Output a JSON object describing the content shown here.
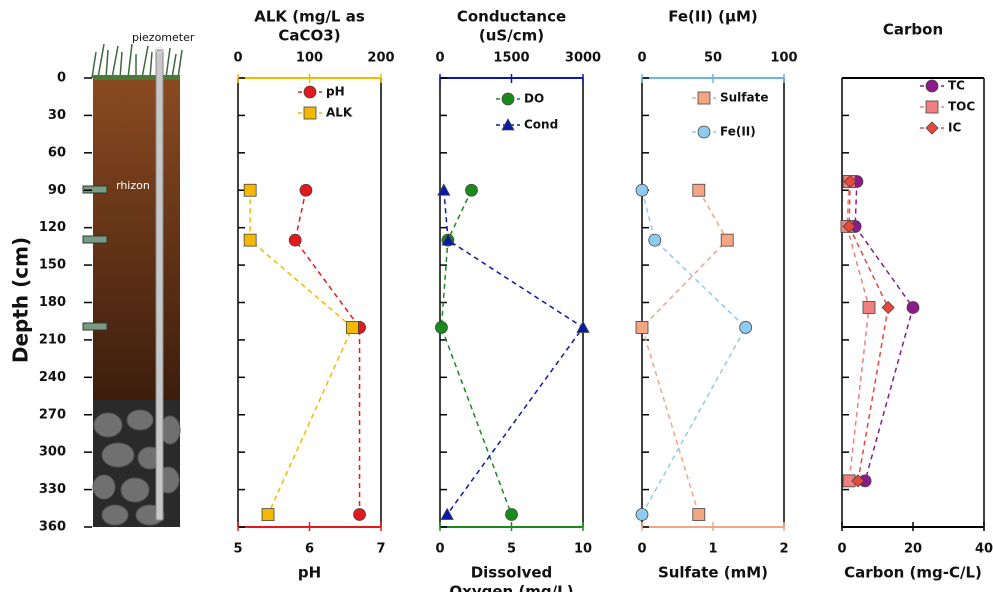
{
  "illustration": {
    "labels": [
      "piezometer",
      "rhizon"
    ]
  },
  "chart_data": [
    {
      "type": "line",
      "x2label": [
        "ALK (mg/L as",
        "CaCO3)"
      ],
      "xlabel": "pH",
      "y": [
        90,
        130,
        200,
        350
      ],
      "ylabel": "Depth (cm)",
      "ylim": [
        360,
        0
      ],
      "yticks": [
        0,
        30,
        60,
        90,
        120,
        150,
        180,
        210,
        240,
        270,
        300,
        330,
        360
      ],
      "xlim": [
        5,
        7
      ],
      "xticks": [
        5,
        6,
        7
      ],
      "x2lim": [
        0,
        200
      ],
      "x2ticks": [
        0,
        100,
        200
      ],
      "xaxis_color": "#e31a1c",
      "x2axis_color": "#f5b800",
      "series": [
        {
          "name": "pH",
          "color": "#e31a1c",
          "marker": "circle",
          "values": [
            5.95,
            5.8,
            6.7,
            6.7
          ]
        },
        {
          "name": "ALK",
          "color": "#f5b800",
          "marker": "square",
          "axis": "x2",
          "values": [
            17,
            17,
            160,
            42
          ]
        }
      ]
    },
    {
      "type": "line",
      "x2label": [
        "Conductance",
        "(uS/cm)"
      ],
      "xlabel": [
        "Dissolved",
        "Oxygen (mg/L)"
      ],
      "y": [
        90,
        130,
        200,
        350
      ],
      "ylim": [
        360,
        0
      ],
      "yticks": [
        0,
        30,
        60,
        90,
        120,
        150,
        180,
        210,
        240,
        270,
        300,
        330,
        360
      ],
      "xlim": [
        0,
        10
      ],
      "xticks": [
        0,
        5,
        10
      ],
      "x2lim": [
        0,
        3000
      ],
      "x2ticks": [
        0,
        1500,
        3000
      ],
      "xaxis_color": "#1a8a1a",
      "x2axis_color": "#0a1aa8",
      "series": [
        {
          "name": "DO",
          "color": "#1a8a1a",
          "marker": "circle",
          "values": [
            2.2,
            0.55,
            0.1,
            5.0
          ]
        },
        {
          "name": "Cond",
          "color": "#0a1aa8",
          "marker": "triangle",
          "axis": "x2",
          "values": [
            80,
            170,
            3000,
            150
          ]
        }
      ]
    },
    {
      "type": "line",
      "x2label": [
        "Fe(II) (μM)"
      ],
      "xlabel": "Sulfate (mM)",
      "y": [
        90,
        130,
        200,
        350
      ],
      "ylim": [
        360,
        0
      ],
      "yticks": [
        0,
        30,
        60,
        90,
        120,
        150,
        180,
        210,
        240,
        270,
        300,
        330,
        360
      ],
      "xlim": [
        0,
        2
      ],
      "xticks": [
        0,
        1,
        2
      ],
      "x2lim": [
        0,
        100
      ],
      "x2ticks": [
        0,
        50,
        100
      ],
      "xaxis_color": "#f4a582",
      "x2axis_color": "#6cb4e4",
      "series": [
        {
          "name": "Sulfate",
          "color": "#f4a582",
          "marker": "square",
          "values": [
            0.8,
            1.2,
            0,
            0.8
          ]
        },
        {
          "name": "Fe(II)",
          "color": "#8ecbf0",
          "marker": "circle",
          "axis": "x2",
          "values": [
            0,
            9,
            73,
            0
          ]
        }
      ]
    },
    {
      "type": "line",
      "title": "Carbon",
      "xlabel": "Carbon (mg-C/L)",
      "y": [
        83,
        119,
        184,
        323
      ],
      "ylim": [
        360,
        0
      ],
      "yticks": [
        0,
        30,
        60,
        90,
        120,
        150,
        180,
        210,
        240,
        270,
        300,
        330,
        360
      ],
      "xlim": [
        0,
        40
      ],
      "xticks": [
        0,
        20,
        40
      ],
      "xaxis_color": "#000000",
      "series": [
        {
          "name": "TC",
          "color": "#8b1a8b",
          "marker": "circle",
          "values": [
            4.2,
            3.7,
            20,
            6.5
          ]
        },
        {
          "name": "TOC",
          "color": "#f08080",
          "marker": "square",
          "values": [
            2,
            1.4,
            7.6,
            2
          ]
        },
        {
          "name": "IC",
          "color": "#e8483c",
          "marker": "diamond",
          "values": [
            2.3,
            2,
            13,
            4.5
          ]
        }
      ]
    }
  ]
}
